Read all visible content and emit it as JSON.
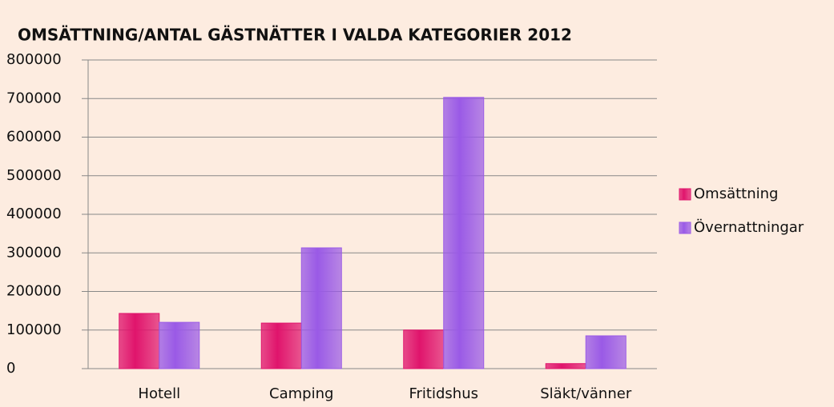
{
  "chart_data": {
    "type": "bar",
    "title": "OMSÄTTNING/ANTAL GÄSTNÄTTER I VALDA KATEGORIER 2012",
    "categories": [
      "Hotell",
      "Camping",
      "Fritidshus",
      "Släkt/vänner"
    ],
    "series": [
      {
        "name": "Omsättning",
        "color": "#e0146c",
        "values": [
          143000,
          118000,
          100000,
          13000
        ]
      },
      {
        "name": "Övernattningar",
        "color": "#9a5ae6",
        "values": [
          120000,
          313000,
          703000,
          85000
        ]
      }
    ],
    "ylim": [
      0,
      800000
    ],
    "yticks": [
      0,
      100000,
      200000,
      300000,
      400000,
      500000,
      600000,
      700000,
      800000
    ],
    "grid": true,
    "legend": "right"
  }
}
